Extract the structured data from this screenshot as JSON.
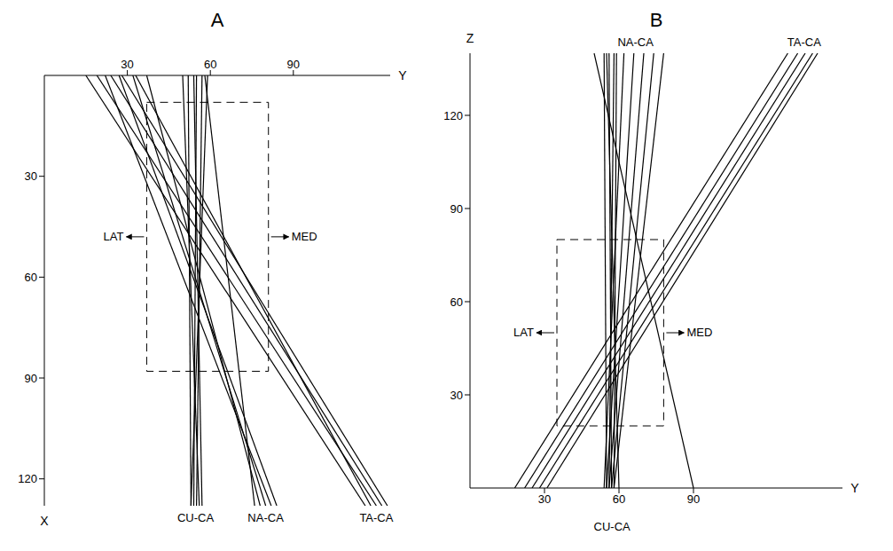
{
  "chart_data": [
    {
      "type": "line",
      "title": "A",
      "x_label": "Y",
      "y_label": "X",
      "xlim": [
        0,
        125
      ],
      "ylim": [
        0,
        128
      ],
      "xticks": [
        30,
        60,
        90
      ],
      "yticks": [
        30,
        60,
        90,
        120
      ],
      "annotations": [
        "LAT",
        "MED"
      ],
      "box": {
        "x": [
          37,
          81
        ],
        "y": [
          8,
          88
        ]
      },
      "series": [
        {
          "name": "CU-CA",
          "color": "#000000",
          "lines": [
            {
              "x": [
                52,
                53
              ],
              "y": [
                0,
                128
              ]
            },
            {
              "x": [
                55,
                54
              ],
              "y": [
                0,
                128
              ]
            },
            {
              "x": [
                57,
                55
              ],
              "y": [
                0,
                128
              ]
            },
            {
              "x": [
                50,
                56
              ],
              "y": [
                0,
                128
              ]
            },
            {
              "x": [
                59,
                53
              ],
              "y": [
                0,
                128
              ]
            },
            {
              "x": [
                54,
                57
              ],
              "y": [
                0,
                128
              ]
            }
          ]
        },
        {
          "name": "NA-CA",
          "color": "#000000",
          "lines": [
            {
              "x": [
                22,
                82
              ],
              "y": [
                0,
                128
              ]
            },
            {
              "x": [
                27,
                84
              ],
              "y": [
                0,
                128
              ]
            },
            {
              "x": [
                32,
                80
              ],
              "y": [
                0,
                128
              ]
            },
            {
              "x": [
                37,
                78
              ],
              "y": [
                0,
                128
              ]
            },
            {
              "x": [
                58,
                76
              ],
              "y": [
                0,
                128
              ]
            }
          ]
        },
        {
          "name": "TA-CA",
          "color": "#000000",
          "lines": [
            {
              "x": [
                15,
                116
              ],
              "y": [
                0,
                128
              ]
            },
            {
              "x": [
                19,
                120
              ],
              "y": [
                0,
                128
              ]
            },
            {
              "x": [
                24,
                122
              ],
              "y": [
                0,
                128
              ]
            },
            {
              "x": [
                28,
                124
              ],
              "y": [
                0,
                128
              ]
            },
            {
              "x": [
                33,
                118
              ],
              "y": [
                0,
                128
              ]
            }
          ]
        }
      ]
    },
    {
      "type": "line",
      "title": "B",
      "x_label": "Y",
      "y_label": "Z",
      "xlim": [
        0,
        150
      ],
      "ylim": [
        0,
        140
      ],
      "xticks": [
        30,
        60,
        90
      ],
      "yticks": [
        30,
        60,
        90,
        120
      ],
      "annotations": [
        "LAT",
        "MED"
      ],
      "box": {
        "x": [
          35,
          78
        ],
        "y": [
          20,
          80
        ]
      },
      "series": [
        {
          "name": "CU-CA",
          "color": "#000000",
          "lines": [
            {
              "x": [
                55,
                54
              ],
              "y": [
                0,
                140
              ]
            },
            {
              "x": [
                57,
                56
              ],
              "y": [
                0,
                140
              ]
            },
            {
              "x": [
                58,
                59
              ],
              "y": [
                0,
                140
              ]
            },
            {
              "x": [
                56,
                58
              ],
              "y": [
                0,
                140
              ]
            },
            {
              "x": [
                60,
                55
              ],
              "y": [
                0,
                140
              ]
            }
          ]
        },
        {
          "name": "NA-CA",
          "color": "#000000",
          "lines": [
            {
              "x": [
                54,
                62
              ],
              "y": [
                0,
                140
              ]
            },
            {
              "x": [
                55,
                66
              ],
              "y": [
                0,
                140
              ]
            },
            {
              "x": [
                56,
                70
              ],
              "y": [
                0,
                140
              ]
            },
            {
              "x": [
                57,
                74
              ],
              "y": [
                0,
                140
              ]
            },
            {
              "x": [
                58,
                78
              ],
              "y": [
                0,
                140
              ]
            },
            {
              "x": [
                90,
                50
              ],
              "y": [
                0,
                140
              ]
            }
          ]
        },
        {
          "name": "TA-CA",
          "color": "#000000",
          "lines": [
            {
              "x": [
                18,
                128
              ],
              "y": [
                0,
                140
              ]
            },
            {
              "x": [
                22,
                132
              ],
              "y": [
                0,
                140
              ]
            },
            {
              "x": [
                25,
                135
              ],
              "y": [
                0,
                140
              ]
            },
            {
              "x": [
                28,
                138
              ],
              "y": [
                0,
                140
              ]
            },
            {
              "x": [
                31,
                140
              ],
              "y": [
                0,
                140
              ]
            }
          ]
        }
      ]
    }
  ]
}
